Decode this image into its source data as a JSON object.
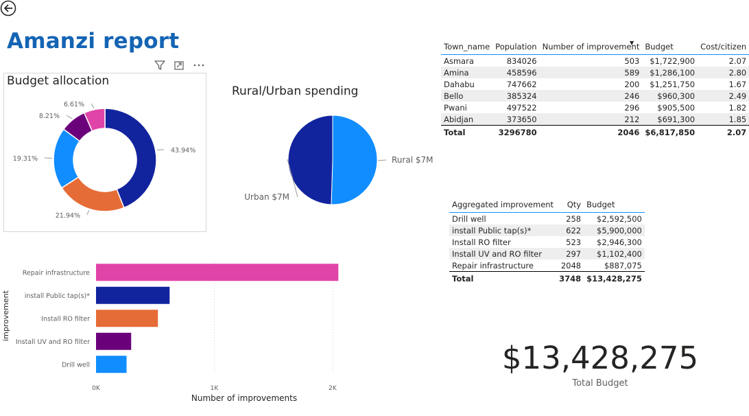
{
  "report": {
    "title": "Amanzi report"
  },
  "toolbar": {
    "filter_icon": "filter-icon",
    "focus_icon": "focus-mode-icon",
    "more_icon": "more-options-icon"
  },
  "donut": {
    "title": "Budget allocation",
    "chart_data": {
      "type": "pie",
      "title": "Budget allocation",
      "slices": [
        {
          "label": "43.94%",
          "value": 43.94,
          "color": "#12239e"
        },
        {
          "label": "21.94%",
          "value": 21.94,
          "color": "#e66c37"
        },
        {
          "label": "19.31%",
          "value": 19.31,
          "color": "#118dff"
        },
        {
          "label": "8.21%",
          "value": 8.21,
          "color": "#6b007b"
        },
        {
          "label": "6.61%",
          "value": 6.61,
          "color": "#e044a7"
        }
      ]
    }
  },
  "pie": {
    "title": "Rural/Urban spending",
    "chart_data": {
      "type": "pie",
      "title": "Rural/Urban spending",
      "slices": [
        {
          "label": "Rural $7M",
          "value": 50.5,
          "color": "#118dff"
        },
        {
          "label": "Urban $7M",
          "value": 49.5,
          "color": "#12239e"
        }
      ]
    }
  },
  "bar": {
    "chart_data": {
      "type": "bar",
      "orientation": "horizontal",
      "categories": [
        "Repair infrastructure",
        "install Public tap(s)*",
        "Install RO filter",
        "Install UV and RO filter",
        "Drill well"
      ],
      "values": [
        2048,
        622,
        523,
        297,
        258
      ],
      "colors": [
        "#e044a7",
        "#12239e",
        "#e66c37",
        "#6b007b",
        "#118dff"
      ],
      "xlabel": "Number of improvements",
      "ylabel": "improvement",
      "xticks": [
        "0K",
        "1K",
        "2K"
      ],
      "xlim": [
        0,
        2000
      ],
      "grid": true
    }
  },
  "town_table": {
    "headers": [
      "Town_name",
      "Population",
      "Number of improvement",
      "Budget",
      "Cost/citizen"
    ],
    "rows": [
      [
        "Asmara",
        "834026",
        "503",
        "$1,722,900",
        "2.07"
      ],
      [
        "Amina",
        "458596",
        "589",
        "$1,286,100",
        "2.80"
      ],
      [
        "Dahabu",
        "747662",
        "200",
        "$1,251,750",
        "1.67"
      ],
      [
        "Bello",
        "385324",
        "246",
        "$960,300",
        "2.49"
      ],
      [
        "Pwani",
        "497522",
        "296",
        "$905,500",
        "1.82"
      ],
      [
        "Abidjan",
        "373650",
        "212",
        "$691,300",
        "1.85"
      ]
    ],
    "total": [
      "Total",
      "3296780",
      "2046",
      "$6,817,850",
      "2.07"
    ]
  },
  "agg_table": {
    "headers": [
      "Aggregated improvement",
      "Qty",
      "Budget"
    ],
    "rows": [
      [
        "Drill well",
        "258",
        "$2,592,500"
      ],
      [
        "install Public tap(s)*",
        "622",
        "$5,900,000"
      ],
      [
        "Install RO filter",
        "523",
        "$2,946,300"
      ],
      [
        "Install UV and RO filter",
        "297",
        "$1,102,400"
      ],
      [
        "Repair infrastructure",
        "2048",
        "$887,075"
      ]
    ],
    "total": [
      "Total",
      "3748",
      "$13,428,275"
    ]
  },
  "kpi": {
    "value": "$13,428,275",
    "label": "Total Budget"
  }
}
